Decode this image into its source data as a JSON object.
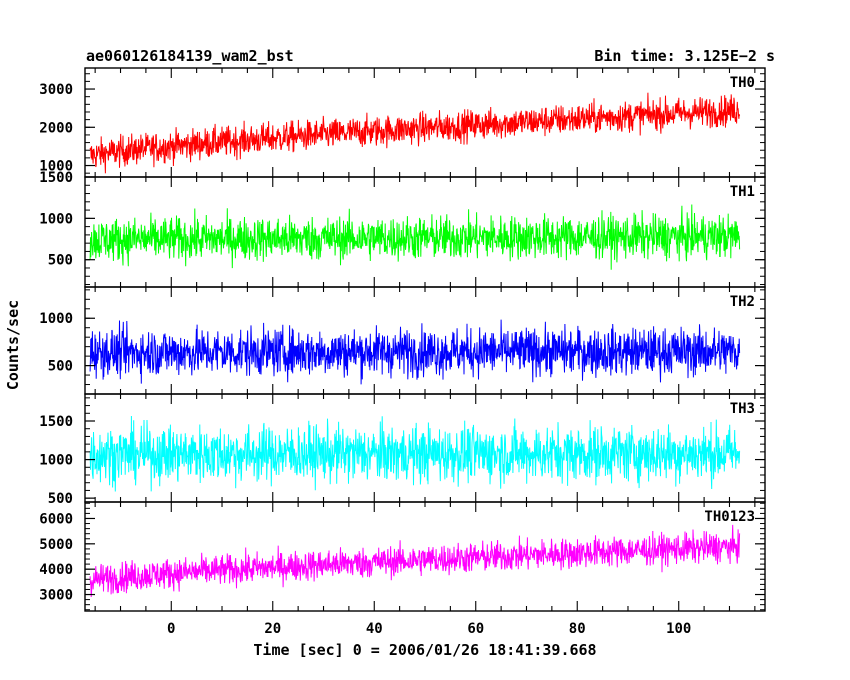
{
  "chart_data": {
    "type": "line",
    "title": "ae060126184139_wam2_bst",
    "subtitle": "Bin time: 3.125E−2 s",
    "xlabel": "Time [sec] 0 = 2006/01/26 18:41:39.668",
    "ylabel": "Counts/sec",
    "xlim": [
      -17,
      117
    ],
    "x_ticks": [
      0,
      20,
      40,
      60,
      80,
      100
    ],
    "x_tick_labels": [
      "0",
      "20",
      "40",
      "60",
      "80",
      "100"
    ],
    "data_x_range": [
      -16,
      112
    ],
    "grid": false,
    "series": [
      {
        "name": "TH0",
        "color": "#ff0000",
        "ylim": [
          700,
          3550
        ],
        "y_ticks": [
          1000,
          2000,
          3000
        ],
        "y_tick_labels": [
          "1000",
          "2000",
          "3000"
        ],
        "mean_start": 1250,
        "mean_end": 2450,
        "spread": 320
      },
      {
        "name": "TH1",
        "color": "#00ff00",
        "ylim": [
          170,
          1500
        ],
        "y_ticks": [
          500,
          1000,
          1500
        ],
        "y_tick_labels": [
          "500",
          "1000",
          "1500"
        ],
        "mean_start": 740,
        "mean_end": 780,
        "spread": 210
      },
      {
        "name": "TH2",
        "color": "#0000ff",
        "ylim": [
          200,
          1330
        ],
        "y_ticks": [
          500,
          1000
        ],
        "y_tick_labels": [
          "500",
          "1000"
        ],
        "mean_start": 640,
        "mean_end": 650,
        "spread": 200
      },
      {
        "name": "TH3",
        "color": "#00ffff",
        "ylim": [
          450,
          1850
        ],
        "y_ticks": [
          500,
          1000,
          1500
        ],
        "y_tick_labels": [
          "500",
          "1000",
          "1500"
        ],
        "mean_start": 1070,
        "mean_end": 1080,
        "spread": 290
      },
      {
        "name": "TH0123",
        "color": "#ff00ff",
        "ylim": [
          2350,
          6650
        ],
        "y_ticks": [
          3000,
          4000,
          5000,
          6000
        ],
        "y_tick_labels": [
          "3000",
          "4000",
          "5000",
          "6000"
        ],
        "mean_start": 3550,
        "mean_end": 4900,
        "spread": 480
      }
    ]
  }
}
